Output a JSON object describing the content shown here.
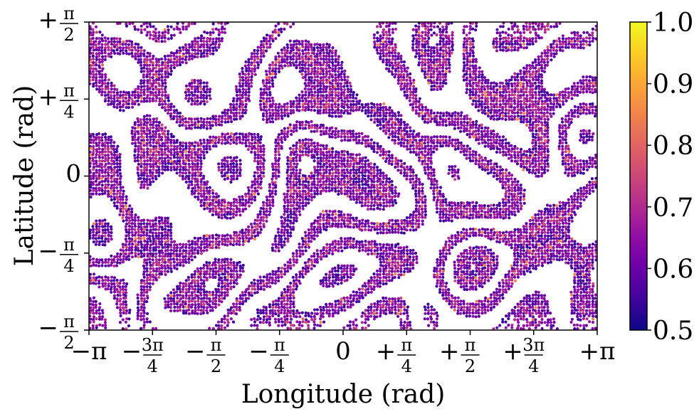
{
  "chart_data": {
    "type": "scatter",
    "title": "",
    "xlabel": "Longitude (rad)",
    "ylabel": "Latitude (rad)",
    "xlim": [
      -3.14159,
      3.14159
    ],
    "ylim": [
      -1.5708,
      1.5708
    ],
    "x_ticks": [
      {
        "value": -3.14159,
        "label": "−π"
      },
      {
        "value": -2.35619,
        "label": "−3π/4"
      },
      {
        "value": -1.5708,
        "label": "−π/2"
      },
      {
        "value": -0.7854,
        "label": "−π/4"
      },
      {
        "value": 0,
        "label": "0"
      },
      {
        "value": 0.7854,
        "label": "+π/4"
      },
      {
        "value": 1.5708,
        "label": "+π/2"
      },
      {
        "value": 2.35619,
        "label": "+3π/4"
      },
      {
        "value": 3.14159,
        "label": "+π"
      }
    ],
    "y_ticks": [
      {
        "value": -1.5708,
        "label": "−π/2"
      },
      {
        "value": -0.7854,
        "label": "−π/4"
      },
      {
        "value": 0,
        "label": "0"
      },
      {
        "value": 0.7854,
        "label": "+π/4"
      },
      {
        "value": 1.5708,
        "label": "+π/2"
      }
    ],
    "colorbar": {
      "colormap": "plasma",
      "range": [
        0.5,
        1.0
      ],
      "ticks": [
        "0.5",
        "0.6",
        "0.7",
        "0.8",
        "0.9",
        "1.0"
      ],
      "tick_values": [
        0.5,
        0.6,
        0.7,
        0.8,
        0.9,
        1.0
      ]
    },
    "pattern": "labyrinthine stripe pattern of densely packed points on a longitude-latitude grid; values mostly 0.55-0.7",
    "grid": false,
    "legend": "none"
  }
}
